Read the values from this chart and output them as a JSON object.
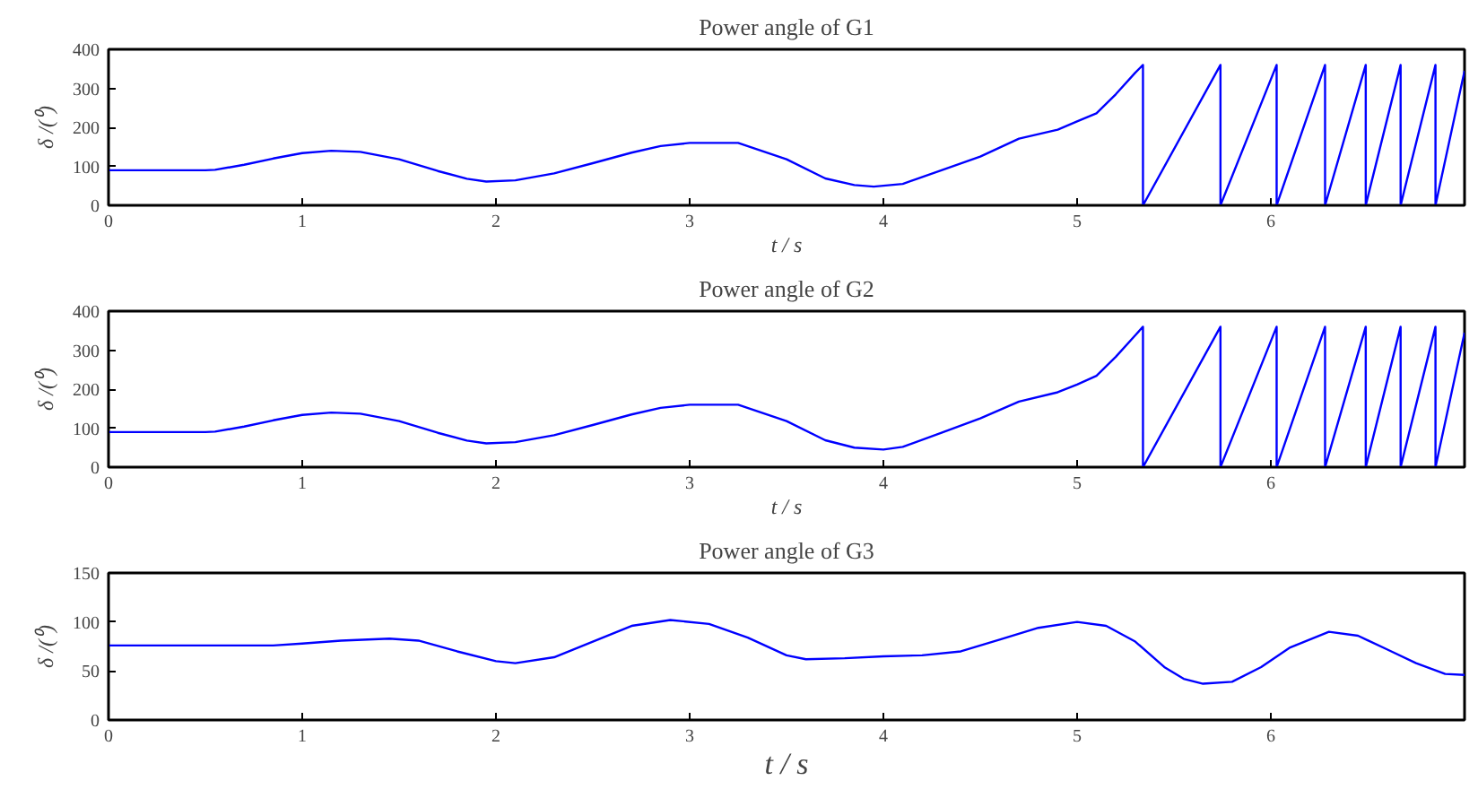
{
  "chart_data": [
    {
      "type": "line",
      "title": "Power angle of G1",
      "xlabel": "t / s",
      "ylabel": "δ /(⁰)",
      "xlim": [
        0,
        7
      ],
      "ylim": [
        0,
        400
      ],
      "xticks": [
        0,
        1,
        2,
        3,
        4,
        5,
        6
      ],
      "yticks": [
        0,
        100,
        200,
        300,
        400
      ],
      "grid": false,
      "series": [
        {
          "color": "#0000ff",
          "x": [
            0,
            0.5,
            0.55,
            0.7,
            0.85,
            1.0,
            1.15,
            1.3,
            1.5,
            1.7,
            1.85,
            1.95,
            2.1,
            2.3,
            2.5,
            2.7,
            2.85,
            3.0,
            3.25,
            3.5,
            3.7,
            3.85,
            3.95,
            4.1,
            4.3,
            4.5,
            4.7,
            4.9,
            5.0,
            5.1,
            5.2,
            5.3,
            5.34,
            5.34,
            5.74,
            5.74,
            6.03,
            6.03,
            6.28,
            6.28,
            6.49,
            6.49,
            6.67,
            6.67,
            6.85,
            6.85,
            7.0
          ],
          "values": [
            90,
            90,
            91,
            104,
            120,
            134,
            140,
            137,
            118,
            88,
            68,
            61,
            64,
            82,
            108,
            135,
            152,
            160,
            160,
            118,
            69,
            52,
            48,
            55,
            90,
            125,
            171,
            194,
            215,
            236,
            285,
            340,
            360,
            0,
            360,
            0,
            360,
            0,
            360,
            0,
            360,
            0,
            360,
            0,
            360,
            0,
            345
          ]
        }
      ]
    },
    {
      "type": "line",
      "title": "Power angle of G2",
      "xlabel": "t / s",
      "ylabel": "δ /(⁰)",
      "xlim": [
        0,
        7
      ],
      "ylim": [
        0,
        400
      ],
      "xticks": [
        0,
        1,
        2,
        3,
        4,
        5,
        6
      ],
      "yticks": [
        0,
        100,
        200,
        300,
        400
      ],
      "grid": false,
      "series": [
        {
          "color": "#0000ff",
          "x": [
            0,
            0.5,
            0.55,
            0.7,
            0.85,
            1.0,
            1.15,
            1.3,
            1.5,
            1.7,
            1.85,
            1.95,
            2.1,
            2.3,
            2.5,
            2.7,
            2.85,
            3.0,
            3.25,
            3.5,
            3.7,
            3.85,
            4.0,
            4.1,
            4.3,
            4.5,
            4.7,
            4.9,
            5.0,
            5.1,
            5.2,
            5.3,
            5.34,
            5.34,
            5.74,
            5.74,
            6.03,
            6.03,
            6.28,
            6.28,
            6.49,
            6.49,
            6.67,
            6.67,
            6.85,
            6.85,
            7.0
          ],
          "values": [
            90,
            90,
            91,
            104,
            120,
            134,
            140,
            137,
            118,
            88,
            68,
            61,
            64,
            82,
            108,
            135,
            152,
            160,
            160,
            118,
            69,
            50,
            45,
            52,
            88,
            125,
            168,
            192,
            212,
            234,
            283,
            338,
            360,
            0,
            360,
            0,
            360,
            0,
            360,
            0,
            360,
            0,
            360,
            0,
            360,
            0,
            345
          ]
        }
      ]
    },
    {
      "type": "line",
      "title": "Power angle of G3",
      "xlabel": "t / s",
      "ylabel": "δ /(⁰)",
      "xlim": [
        0,
        7
      ],
      "ylim": [
        0,
        150
      ],
      "xticks": [
        0,
        1,
        2,
        3,
        4,
        5,
        6
      ],
      "yticks": [
        0,
        50,
        100,
        150
      ],
      "grid": false,
      "series": [
        {
          "color": "#0000ff",
          "x": [
            0,
            0.85,
            1.0,
            1.2,
            1.45,
            1.6,
            1.8,
            2.0,
            2.1,
            2.3,
            2.5,
            2.7,
            2.9,
            3.1,
            3.3,
            3.5,
            3.6,
            3.8,
            4.0,
            4.2,
            4.4,
            4.6,
            4.8,
            5.0,
            5.15,
            5.3,
            5.45,
            5.55,
            5.65,
            5.8,
            5.95,
            6.1,
            6.3,
            6.45,
            6.6,
            6.75,
            6.9,
            7.0
          ],
          "values": [
            76,
            76,
            78,
            81,
            83,
            81,
            70,
            60,
            58,
            64,
            80,
            96,
            102,
            98,
            84,
            66,
            62,
            63,
            65,
            66,
            70,
            82,
            94,
            100,
            96,
            80,
            54,
            42,
            37,
            39,
            54,
            74,
            90,
            86,
            72,
            58,
            47,
            46
          ]
        }
      ]
    }
  ]
}
